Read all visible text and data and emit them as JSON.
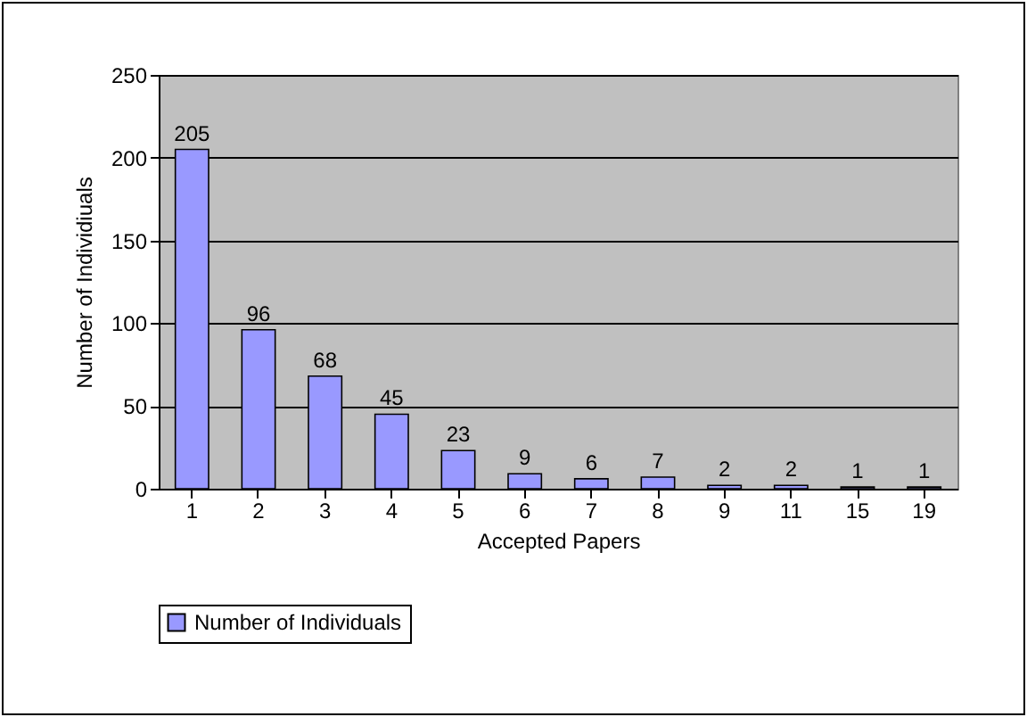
{
  "chart_data": {
    "type": "bar",
    "categories": [
      "1",
      "2",
      "3",
      "4",
      "5",
      "6",
      "7",
      "8",
      "9",
      "11",
      "15",
      "19"
    ],
    "series": [
      {
        "name": "Number of Individuals",
        "color": "#9999ff",
        "values": [
          205,
          96,
          68,
          45,
          23,
          9,
          6,
          7,
          2,
          2,
          1,
          1
        ]
      }
    ],
    "xlabel": "Accepted Papers",
    "ylabel": "Number of Individiuals",
    "ylim": [
      0,
      250
    ],
    "yticks": [
      0,
      50,
      100,
      150,
      200,
      250
    ],
    "grid": "y",
    "legend": "bottom left",
    "data_labels": true
  }
}
